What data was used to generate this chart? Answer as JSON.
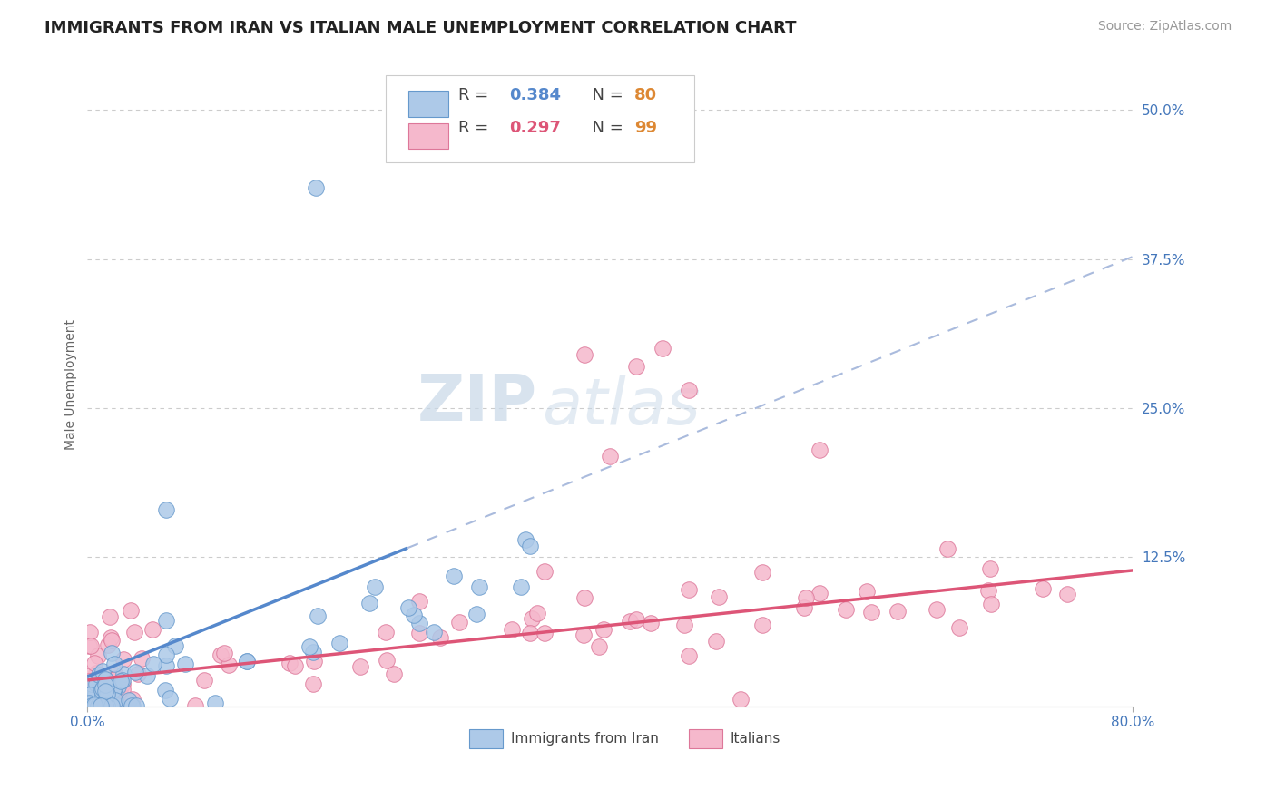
{
  "title": "IMMIGRANTS FROM IRAN VS ITALIAN MALE UNEMPLOYMENT CORRELATION CHART",
  "source": "Source: ZipAtlas.com",
  "ylabel": "Male Unemployment",
  "watermark_zip": "ZIP",
  "watermark_atlas": "atlas",
  "xlim": [
    0.0,
    0.8
  ],
  "ylim": [
    0.0,
    0.54
  ],
  "xtick_vals": [
    0.0,
    0.8
  ],
  "xtick_labels": [
    "0.0%",
    "80.0%"
  ],
  "ytick_vals": [
    0.125,
    0.25,
    0.375,
    0.5
  ],
  "ytick_labels": [
    "12.5%",
    "25.0%",
    "37.5%",
    "50.0%"
  ],
  "series1_name": "Immigrants from Iran",
  "series1_color": "#adc9e8",
  "series1_edge_color": "#6699cc",
  "series1_line_color": "#5588cc",
  "series1_R": 0.384,
  "series1_N": 80,
  "series2_name": "Italians",
  "series2_color": "#f5b8cc",
  "series2_edge_color": "#dd7799",
  "series2_line_color": "#dd5577",
  "series2_R": 0.297,
  "series2_N": 99,
  "dash_color": "#aabbdd",
  "grid_color": "#cccccc",
  "background_color": "#ffffff",
  "title_fontsize": 13,
  "axis_label_fontsize": 10,
  "tick_fontsize": 11,
  "legend_fontsize": 13,
  "source_fontsize": 10,
  "watermark_fontsize_zip": 52,
  "watermark_fontsize_atlas": 52,
  "watermark_color": "#dce8f2"
}
